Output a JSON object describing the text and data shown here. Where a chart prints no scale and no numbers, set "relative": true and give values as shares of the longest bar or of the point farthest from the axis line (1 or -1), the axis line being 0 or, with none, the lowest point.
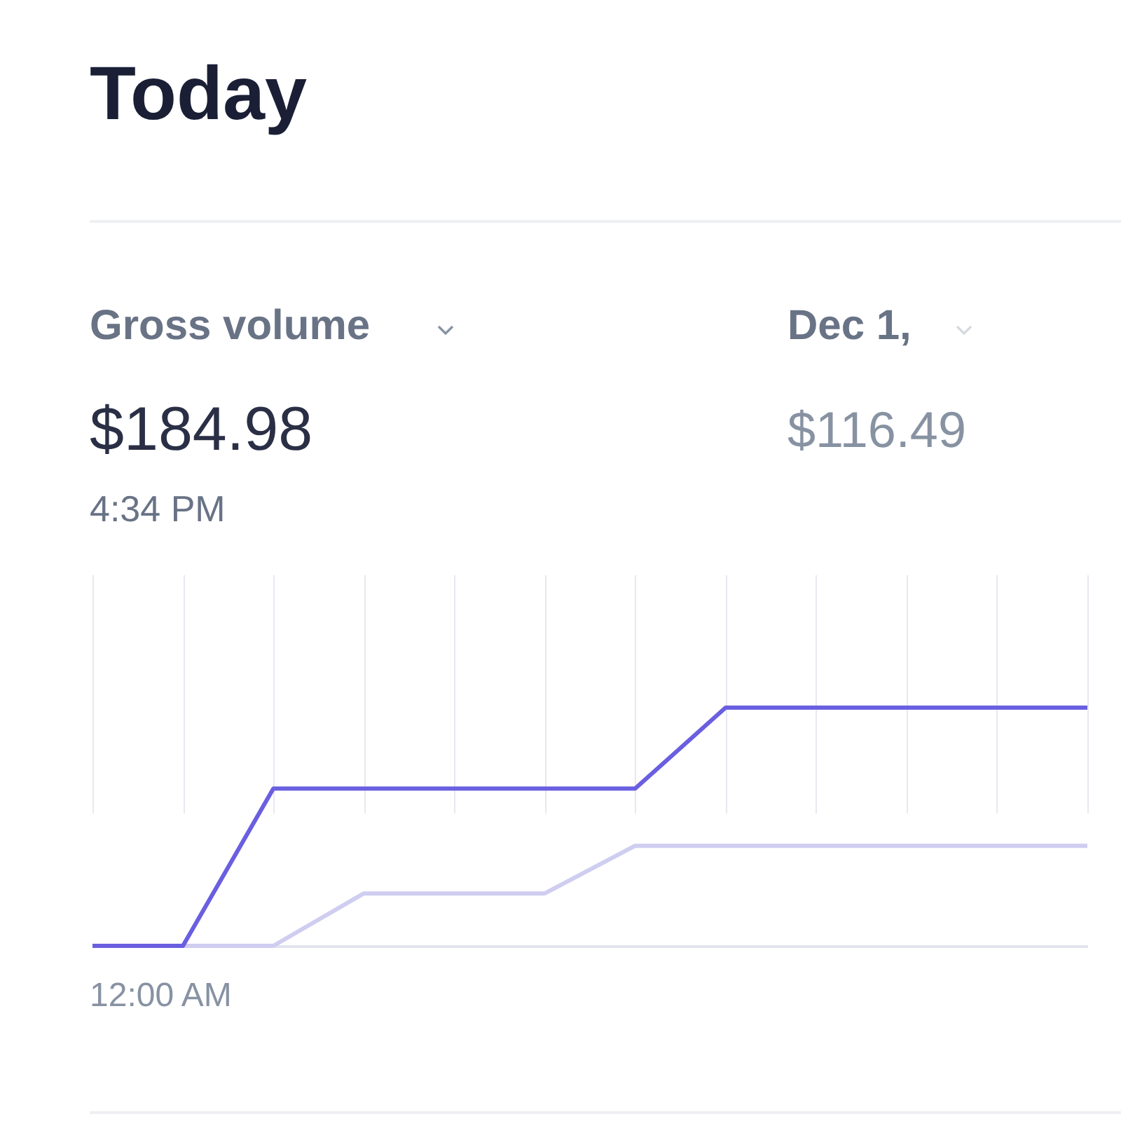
{
  "chart_data": {
    "type": "line",
    "title": "Today",
    "relative": true,
    "annotations": [
      "Gross volume",
      "$184.98",
      "4:34 PM",
      "Dec 1,",
      "$116.49",
      "12:00 AM"
    ],
    "categories": [
      null,
      null,
      null,
      null,
      null,
      null,
      null,
      null,
      null,
      null,
      null,
      null
    ],
    "series": [
      {
        "color": "#cfcdf0",
        "values": [
          0,
          0,
          0,
          0.22,
          0.22,
          0.22,
          0.42,
          0.42,
          0.42,
          0.42,
          0.42,
          0.42
        ]
      },
      {
        "color": "#6a5fe0",
        "values": [
          0,
          0,
          0.66,
          0.66,
          0.66,
          0.66,
          0.66,
          1,
          1,
          1,
          1,
          1
        ]
      }
    ],
    "grid": "x",
    "legend": false,
    "marker": "none",
    "line_style": "solid"
  }
}
